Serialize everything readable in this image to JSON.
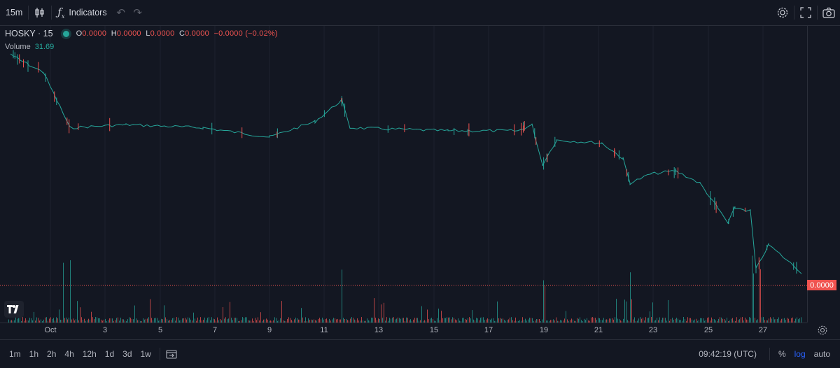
{
  "toolbar": {
    "interval": "15m",
    "indicators_label": "Indicators",
    "icons": [
      "candles-icon",
      "fx-icon",
      "undo-icon",
      "redo-icon",
      "settings-icon",
      "fullscreen-icon",
      "camera-icon"
    ]
  },
  "legend": {
    "symbol": "HOSKY · 15",
    "open_label": "O",
    "open": "0.0000",
    "high_label": "H",
    "high": "0.0000",
    "low_label": "L",
    "low": "0.0000",
    "close_label": "C",
    "close": "0.0000",
    "change": "−0.0000 (−0.02%)",
    "volume_label": "Volume",
    "volume_value": "31.69"
  },
  "price_tag": "0.0000",
  "time_axis": [
    "Oct",
    "3",
    "5",
    "7",
    "9",
    "11",
    "13",
    "15",
    "17",
    "19",
    "21",
    "23",
    "25",
    "27"
  ],
  "bottombar": {
    "ranges": [
      "1m",
      "1h",
      "2h",
      "4h",
      "12h",
      "1d",
      "3d",
      "1w"
    ],
    "clock": "09:42:19 (UTC)",
    "percent": "%",
    "log": "log",
    "auto": "auto"
  },
  "colors": {
    "up": "#26a69a",
    "down": "#ef5350",
    "background": "#131722",
    "grid": "#1e222d",
    "accent": "#2962ff"
  },
  "chart_data": {
    "type": "line",
    "x": [
      "Sep 30",
      "Oct 1",
      "Oct 2",
      "Oct 3",
      "Oct 5",
      "Oct 7",
      "Oct 9",
      "Oct 11",
      "Oct 11",
      "Oct 12",
      "Oct 15",
      "Oct 17",
      "Oct 18",
      "Oct 19",
      "Oct 19",
      "Oct 20",
      "Oct 21",
      "Oct 22",
      "Oct 22",
      "Oct 23",
      "Oct 24",
      "Oct 25",
      "Oct 25",
      "Oct 26",
      "Oct 26",
      "Oct 27",
      "Oct 27",
      "Oct 28"
    ],
    "series": [
      {
        "values": [
          0.0001,
          9.8e-05,
          9.4e-05,
          7.6e-05,
          7.7e-05,
          7.6e-05,
          7.3e-05,
          7.8e-05,
          8.5e-05,
          7.6e-05,
          7.5e-05,
          7.5e-05,
          7.7e-05,
          6.4e-05,
          7.2e-05,
          7.1e-05,
          6.6e-05,
          5.8e-05,
          6.1e-05,
          6.2e-05,
          5.8e-05,
          5e-05,
          4.5e-05,
          5e-05,
          4.9e-05,
          3e-05,
          3.8e-05,
          2.9e-05
        ]
      }
    ],
    "volume_legend_value": "31.69",
    "ylim": [
      2.5e-05,
      0.0001
    ],
    "grid": true,
    "volume_pane": true
  }
}
